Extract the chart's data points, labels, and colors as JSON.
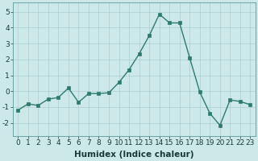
{
  "x": [
    0,
    1,
    2,
    3,
    4,
    5,
    6,
    7,
    8,
    9,
    10,
    11,
    12,
    13,
    14,
    15,
    16,
    17,
    18,
    19,
    20,
    21,
    22,
    23
  ],
  "y": [
    -1.2,
    -0.8,
    -0.9,
    -0.5,
    -0.4,
    0.2,
    -0.7,
    -0.15,
    -0.15,
    -0.1,
    0.55,
    1.35,
    2.35,
    3.5,
    4.85,
    4.3,
    4.3,
    2.1,
    -0.05,
    -1.4,
    -2.15,
    -0.55,
    -0.65,
    -0.85
  ],
  "line_color": "#2e7b6e",
  "marker_color": "#2e7b6e",
  "bg_color": "#cce8e8",
  "grid_color": "#aacfcf",
  "xlabel": "Humidex (Indice chaleur)",
  "ylim": [
    -2.8,
    5.6
  ],
  "xlim": [
    -0.5,
    23.5
  ],
  "yticks": [
    -2,
    -1,
    0,
    1,
    2,
    3,
    4,
    5
  ],
  "xticks": [
    0,
    1,
    2,
    3,
    4,
    5,
    6,
    7,
    8,
    9,
    10,
    11,
    12,
    13,
    14,
    15,
    16,
    17,
    18,
    19,
    20,
    21,
    22,
    23
  ],
  "xlabel_fontsize": 7.5,
  "tick_fontsize": 6.5,
  "line_width": 1.0,
  "marker_size": 2.5
}
